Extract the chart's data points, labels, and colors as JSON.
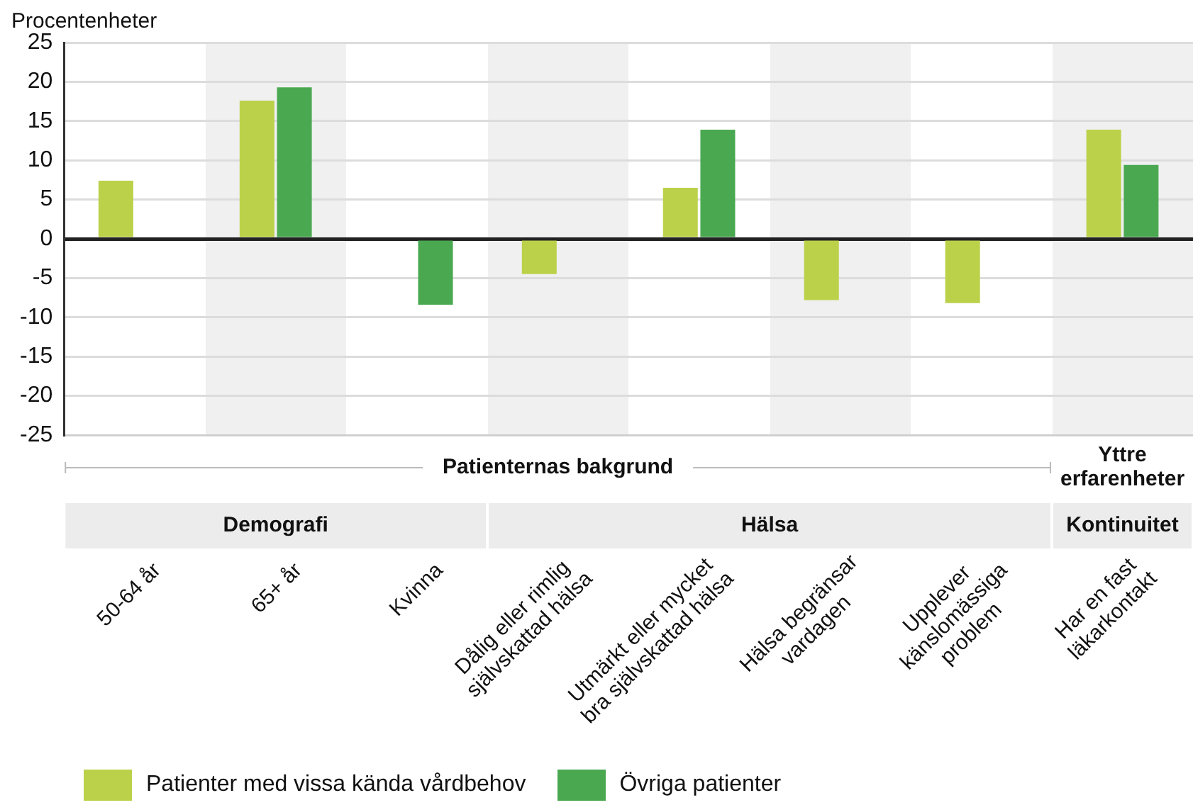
{
  "chart_data": {
    "type": "bar",
    "ylabel": "Procentenheter",
    "categories": [
      "50-64 år",
      "65+ år",
      "Kvinna",
      "Dålig eller rimlig\nsjälvskattad hälsa",
      "Utmärkt eller mycket\nbra självskattad hälsa",
      "Hälsa begränsar\nvardagen",
      "Upplever\nkänslomässiga\nproblem",
      "Har en fast\nläkarkontakt"
    ],
    "series": [
      {
        "name": "Patienter med vissa kända vårdbehov",
        "color": "#bcd14a",
        "values": [
          7.4,
          17.6,
          null,
          -4.5,
          6.5,
          -7.8,
          -8.2,
          13.9
        ]
      },
      {
        "name": "Övriga patienter",
        "color": "#4aa851",
        "values": [
          null,
          19.3,
          -8.4,
          null,
          13.9,
          null,
          null,
          9.4
        ]
      }
    ],
    "ylim": [
      -25,
      25
    ],
    "yticks": [
      -25,
      -20,
      -15,
      -10,
      -5,
      0,
      5,
      10,
      15,
      20,
      25
    ],
    "grid": "y",
    "legend": "bottom left",
    "annotations": [
      "Patienternas bakgrund",
      "Yttre\nerfarenheter",
      "Demografi",
      "Hälsa",
      "Kontinuitet"
    ]
  }
}
